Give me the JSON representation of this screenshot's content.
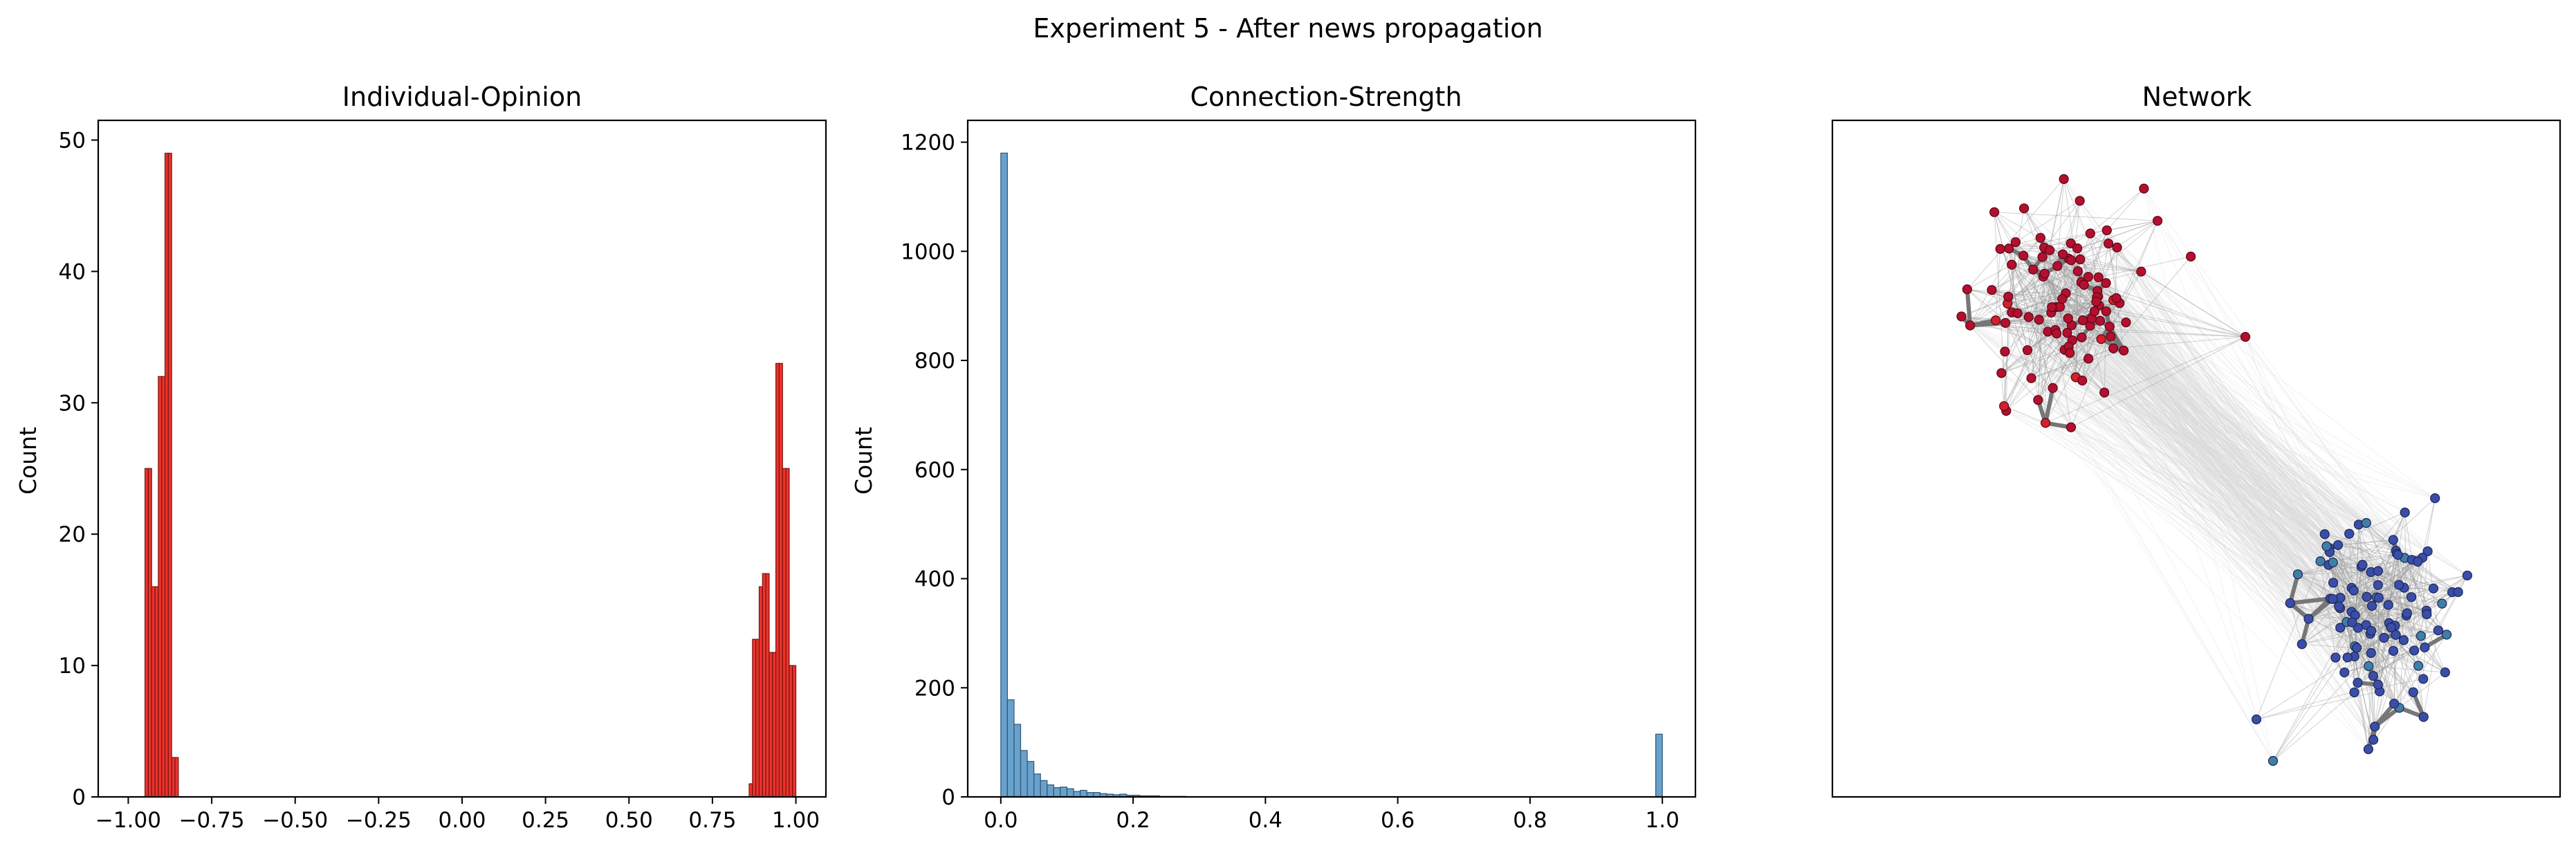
{
  "figure": {
    "title": "Experiment 5 - After news propagation"
  },
  "chart_data": [
    {
      "type": "bar",
      "title": "Individual-Opinion",
      "xlabel": "",
      "ylabel": "Count",
      "xlim": [
        -1.09,
        1.09
      ],
      "ylim": [
        0,
        51.5
      ],
      "xticks": [
        -1.0,
        -0.75,
        -0.5,
        -0.25,
        0.0,
        0.25,
        0.5,
        0.75,
        1.0
      ],
      "xtick_labels": [
        "−1.00",
        "−0.75",
        "−0.50",
        "−0.25",
        "0.00",
        "0.25",
        "0.50",
        "0.75",
        "1.00"
      ],
      "yticks": [
        0,
        10,
        20,
        30,
        40,
        50
      ],
      "ytick_labels": [
        "0",
        "10",
        "20",
        "30",
        "40",
        "50"
      ],
      "bin_width": 0.01,
      "bin_starts": [
        -0.95,
        -0.94,
        -0.93,
        -0.92,
        -0.91,
        -0.9,
        -0.89,
        -0.88,
        -0.87,
        -0.86,
        0.86,
        0.87,
        0.88,
        0.89,
        0.9,
        0.91,
        0.92,
        0.93,
        0.94,
        0.95,
        0.96,
        0.97,
        0.98,
        0.99
      ],
      "values": [
        25,
        25,
        16,
        16,
        32,
        32,
        49,
        49,
        3,
        3,
        1,
        12,
        12,
        16,
        17,
        17,
        11,
        11,
        33,
        33,
        25,
        25,
        10,
        10
      ],
      "color": "#e8221b",
      "edge_color": "#7a1410"
    },
    {
      "type": "bar",
      "title": "Connection-Strength",
      "xlabel": "",
      "ylabel": "Count",
      "xlim": [
        -0.05,
        1.05
      ],
      "ylim": [
        0,
        1240
      ],
      "xticks": [
        0.0,
        0.2,
        0.4,
        0.6,
        0.8,
        1.0
      ],
      "xtick_labels": [
        "0.0",
        "0.2",
        "0.4",
        "0.6",
        "0.8",
        "1.0"
      ],
      "yticks": [
        0,
        200,
        400,
        600,
        800,
        1000,
        1200
      ],
      "ytick_labels": [
        "0",
        "200",
        "400",
        "600",
        "800",
        "1000",
        "1200"
      ],
      "bin_width": 0.01,
      "bin_starts": [
        0.0,
        0.01,
        0.02,
        0.03,
        0.04,
        0.05,
        0.06,
        0.07,
        0.08,
        0.09,
        0.1,
        0.11,
        0.12,
        0.13,
        0.14,
        0.15,
        0.16,
        0.17,
        0.18,
        0.19,
        0.2,
        0.21,
        0.22,
        0.23,
        0.24,
        0.25,
        0.26,
        0.27,
        0.99
      ],
      "values": [
        1180,
        178,
        133,
        85,
        65,
        42,
        30,
        22,
        17,
        18,
        15,
        10,
        12,
        8,
        8,
        6,
        5,
        4,
        5,
        3,
        3,
        2,
        2,
        2,
        1,
        1,
        1,
        1,
        115
      ],
      "color": "#5b9ac8",
      "edge_color": "#2f5577"
    },
    {
      "type": "scatter",
      "title": "Network",
      "description_free": true,
      "axes_ticks": false,
      "clusters": [
        {
          "color": "#b2102e",
          "edge_color": "#5a0617"
        },
        {
          "color": "#3a4ea8",
          "edge_color": "#1c2558"
        }
      ]
    }
  ]
}
